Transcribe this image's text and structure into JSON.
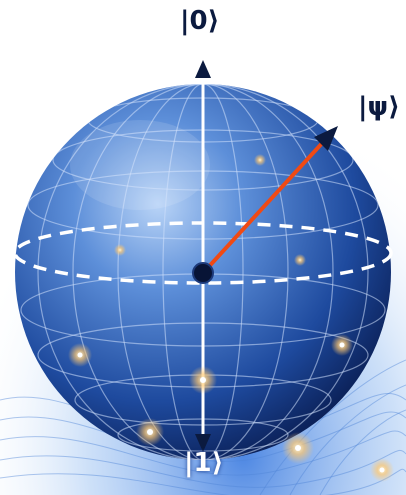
{
  "labels": {
    "zero": "|0⟩",
    "psi": "|ψ⟩",
    "one": "|1⟩"
  },
  "colors": {
    "sphere_light": "#8fb8f0",
    "sphere_mid": "#2f5fb8",
    "sphere_dark": "#0a1e5a",
    "state_vector": "#f04a14",
    "axis": "#ffffff",
    "arrow_head": "#0b1a3f",
    "glow": "#ffcf80"
  }
}
